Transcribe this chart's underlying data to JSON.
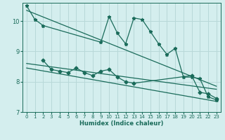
{
  "xlabel": "Humidex (Indice chaleur)",
  "bg_color": "#d4eeee",
  "grid_color": "#b8d8d8",
  "line_color": "#1a6b5a",
  "xlim": [
    -0.5,
    23.5
  ],
  "ylim": [
    7,
    10.6
  ],
  "yticks": [
    7,
    8,
    9,
    10
  ],
  "xticks": [
    0,
    1,
    2,
    3,
    4,
    5,
    6,
    7,
    8,
    9,
    10,
    11,
    12,
    13,
    14,
    15,
    16,
    17,
    18,
    19,
    20,
    21,
    22,
    23
  ],
  "series1_x": [
    0,
    1,
    2,
    9,
    10,
    11,
    12,
    13,
    14,
    15,
    16,
    17,
    18,
    19,
    20,
    21,
    22,
    23
  ],
  "series1_y": [
    10.5,
    10.05,
    9.85,
    9.3,
    10.15,
    9.6,
    9.25,
    10.1,
    10.05,
    9.65,
    9.25,
    8.9,
    9.1,
    8.15,
    8.15,
    8.1,
    7.5,
    7.4
  ],
  "series2_x": [
    2,
    3,
    4,
    5,
    6,
    7,
    8,
    9,
    10,
    11,
    12,
    13,
    20,
    21,
    22,
    23
  ],
  "series2_y": [
    8.7,
    8.4,
    8.35,
    8.3,
    8.45,
    8.3,
    8.2,
    8.35,
    8.4,
    8.15,
    8.0,
    7.95,
    8.2,
    7.65,
    7.6,
    7.45
  ],
  "line1_x": [
    0,
    23
  ],
  "line1_y": [
    10.35,
    7.85
  ],
  "line2_x": [
    0,
    23
  ],
  "line2_y": [
    8.6,
    7.75
  ],
  "line3_x": [
    0,
    23
  ],
  "line3_y": [
    8.45,
    7.35
  ]
}
